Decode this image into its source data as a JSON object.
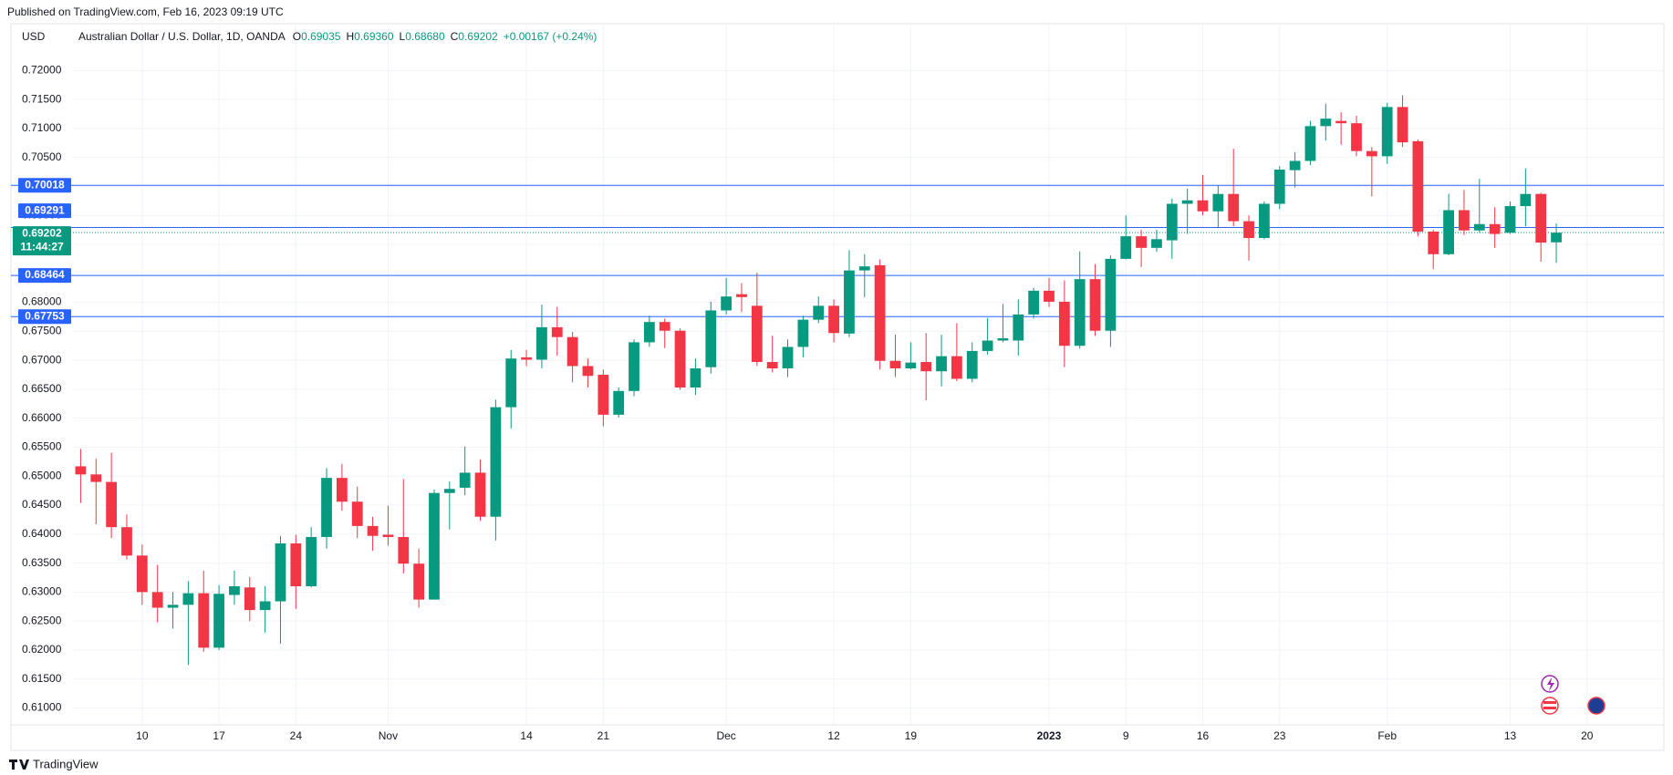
{
  "published": "Published on TradingView.com, Feb 16, 2023 09:19 UTC",
  "footer": "TradingView",
  "chart_data": {
    "type": "candlestick",
    "title": "Australian Dollar / U.S. Dollar, 1D, OANDA",
    "axis_label": "USD",
    "ohlc_legend": [
      "O",
      "0.69035",
      "H",
      "0.69360",
      "L",
      "0.68680",
      "C",
      "0.69202",
      "+0.00167 (+0.24%)"
    ],
    "up_color": "#089981",
    "down_color": "#f23645",
    "level_color": "#2962ff",
    "grid": true,
    "open": [
      0.6517,
      0.6503,
      0.649,
      0.6412,
      0.6363,
      0.63,
      0.6273,
      0.6278,
      0.6298,
      0.6204,
      0.6295,
      0.6308,
      0.6269,
      0.6284,
      0.6384,
      0.631,
      0.6395,
      0.6497,
      0.6456,
      0.6414,
      0.6399,
      0.6395,
      0.6349,
      0.6287,
      0.6471,
      0.648,
      0.6506,
      0.643,
      0.6619,
      0.6705,
      0.6701,
      0.6757,
      0.674,
      0.669,
      0.6675,
      0.6606,
      0.6647,
      0.6731,
      0.6766,
      0.6751,
      0.6653,
      0.6688,
      0.6786,
      0.6814,
      0.6794,
      0.6697,
      0.6686,
      0.6723,
      0.677,
      0.6794,
      0.6746,
      0.6855,
      0.6864,
      0.6699,
      0.6686,
      0.6697,
      0.6681,
      0.6707,
      0.6668,
      0.6716,
      0.6734,
      0.6734,
      0.6779,
      0.682,
      0.6801,
      0.6725,
      0.684,
      0.6751,
      0.6875,
      0.6914,
      0.6894,
      0.6907,
      0.697,
      0.6976,
      0.6957,
      0.6987,
      0.694,
      0.6911,
      0.697,
      0.7028,
      0.7044,
      0.7104,
      0.7113,
      0.7109,
      0.7061,
      0.7052,
      0.7137,
      0.7078,
      0.6922,
      0.6883,
      0.6959,
      0.6924,
      0.6935,
      0.692,
      0.6966,
      0.6987,
      0.69035
    ],
    "high": [
      0.6547,
      0.653,
      0.654,
      0.6434,
      0.6382,
      0.6347,
      0.63,
      0.6319,
      0.6337,
      0.6312,
      0.6337,
      0.6326,
      0.631,
      0.6397,
      0.6399,
      0.6412,
      0.6514,
      0.6521,
      0.6482,
      0.643,
      0.6449,
      0.6495,
      0.6375,
      0.6477,
      0.6491,
      0.6551,
      0.6529,
      0.6632,
      0.6718,
      0.6718,
      0.6796,
      0.6792,
      0.6749,
      0.6703,
      0.6684,
      0.6653,
      0.6736,
      0.6777,
      0.6772,
      0.6755,
      0.6703,
      0.6801,
      0.6842,
      0.6833,
      0.6851,
      0.6742,
      0.6736,
      0.6777,
      0.681,
      0.6805,
      0.689,
      0.6883,
      0.6874,
      0.6744,
      0.6731,
      0.6747,
      0.6744,
      0.6764,
      0.6731,
      0.6773,
      0.6797,
      0.6805,
      0.6825,
      0.6842,
      0.6838,
      0.6888,
      0.6866,
      0.6881,
      0.695,
      0.6925,
      0.6925,
      0.6979,
      0.6996,
      0.702,
      0.7002,
      0.7065,
      0.695,
      0.6974,
      0.7035,
      0.7059,
      0.7113,
      0.7143,
      0.7128,
      0.7122,
      0.7068,
      0.7144,
      0.7157,
      0.7081,
      0.6925,
      0.6987,
      0.6994,
      0.7013,
      0.6964,
      0.6974,
      0.7031,
      0.6989,
      0.6936
    ],
    "low": [
      0.6454,
      0.6417,
      0.6393,
      0.6356,
      0.6278,
      0.6248,
      0.6237,
      0.6174,
      0.6197,
      0.62,
      0.6278,
      0.625,
      0.623,
      0.6211,
      0.6271,
      0.6308,
      0.6375,
      0.644,
      0.6393,
      0.6371,
      0.638,
      0.6332,
      0.6273,
      0.6287,
      0.6408,
      0.6467,
      0.6423,
      0.6389,
      0.6582,
      0.669,
      0.6686,
      0.6708,
      0.6662,
      0.6653,
      0.6586,
      0.6601,
      0.6638,
      0.6723,
      0.6721,
      0.6649,
      0.664,
      0.6677,
      0.6779,
      0.6783,
      0.669,
      0.6679,
      0.6671,
      0.6705,
      0.6764,
      0.6731,
      0.674,
      0.6809,
      0.6684,
      0.6671,
      0.6684,
      0.6631,
      0.6655,
      0.6664,
      0.6662,
      0.671,
      0.6731,
      0.6708,
      0.6772,
      0.6792,
      0.6688,
      0.672,
      0.6742,
      0.6723,
      0.6874,
      0.6861,
      0.6887,
      0.6875,
      0.6918,
      0.695,
      0.6929,
      0.6931,
      0.6872,
      0.6909,
      0.6961,
      0.6998,
      0.7037,
      0.7079,
      0.7072,
      0.7052,
      0.6983,
      0.7039,
      0.7068,
      0.6914,
      0.6857,
      0.6881,
      0.6916,
      0.692,
      0.6894,
      0.6918,
      0.6931,
      0.687,
      0.6868
    ],
    "close": [
      0.6503,
      0.649,
      0.6412,
      0.6363,
      0.63,
      0.6273,
      0.6278,
      0.6298,
      0.6204,
      0.6297,
      0.631,
      0.6269,
      0.6284,
      0.6384,
      0.631,
      0.6395,
      0.6497,
      0.6456,
      0.6414,
      0.6397,
      0.6395,
      0.6349,
      0.6287,
      0.6471,
      0.6478,
      0.6506,
      0.643,
      0.6619,
      0.6703,
      0.6701,
      0.6757,
      0.674,
      0.669,
      0.6673,
      0.6606,
      0.6647,
      0.6731,
      0.6766,
      0.6751,
      0.6653,
      0.6686,
      0.6786,
      0.681,
      0.6809,
      0.6697,
      0.6686,
      0.6723,
      0.677,
      0.6794,
      0.6747,
      0.6855,
      0.6862,
      0.6699,
      0.6686,
      0.6696,
      0.6681,
      0.6707,
      0.6668,
      0.6716,
      0.6734,
      0.6738,
      0.6779,
      0.682,
      0.6801,
      0.6725,
      0.684,
      0.6751,
      0.6875,
      0.6914,
      0.6894,
      0.6909,
      0.697,
      0.6976,
      0.6957,
      0.6987,
      0.694,
      0.6911,
      0.697,
      0.7029,
      0.7044,
      0.7104,
      0.7117,
      0.7109,
      0.7061,
      0.7052,
      0.7137,
      0.7076,
      0.6922,
      0.6883,
      0.6959,
      0.6924,
      0.6935,
      0.6918,
      0.6966,
      0.6987,
      0.6903,
      0.69202
    ],
    "xlim": [
      -0.5,
      103
    ],
    "xticks": [
      {
        "value": 4,
        "label": "10"
      },
      {
        "value": 9,
        "label": "17"
      },
      {
        "value": 14,
        "label": "24"
      },
      {
        "value": 20,
        "label": "Nov"
      },
      {
        "value": 29,
        "label": "14"
      },
      {
        "value": 34,
        "label": "21"
      },
      {
        "value": 42,
        "label": "Dec"
      },
      {
        "value": 49,
        "label": "12"
      },
      {
        "value": 54,
        "label": "19"
      },
      {
        "value": 63,
        "label": "2023"
      },
      {
        "value": 68,
        "label": "9"
      },
      {
        "value": 73,
        "label": "16"
      },
      {
        "value": 78,
        "label": "23"
      },
      {
        "value": 85,
        "label": "Feb"
      },
      {
        "value": 93,
        "label": "13"
      },
      {
        "value": 98,
        "label": "20"
      }
    ],
    "ylim": [
      0.6074,
      0.7243
    ],
    "yticks": [
      {
        "value": 0.61,
        "label": "0.61000"
      },
      {
        "value": 0.615,
        "label": "0.61500"
      },
      {
        "value": 0.62,
        "label": "0.62000"
      },
      {
        "value": 0.625,
        "label": "0.62500"
      },
      {
        "value": 0.63,
        "label": "0.63000"
      },
      {
        "value": 0.635,
        "label": "0.63500"
      },
      {
        "value": 0.64,
        "label": "0.64000"
      },
      {
        "value": 0.645,
        "label": "0.64500"
      },
      {
        "value": 0.65,
        "label": "0.65000"
      },
      {
        "value": 0.655,
        "label": "0.65500"
      },
      {
        "value": 0.66,
        "label": "0.66000"
      },
      {
        "value": 0.665,
        "label": "0.66500"
      },
      {
        "value": 0.67,
        "label": "0.67000"
      },
      {
        "value": 0.675,
        "label": "0.67500"
      },
      {
        "value": 0.68,
        "label": "0.68000"
      },
      {
        "value": 0.685,
        "label": "0.68500"
      },
      {
        "value": 0.69,
        "label": "0.69000"
      },
      {
        "value": 0.695,
        "label": "0.69500"
      },
      {
        "value": 0.7,
        "label": "0.70000"
      },
      {
        "value": 0.705,
        "label": "0.70500"
      },
      {
        "value": 0.71,
        "label": "0.71000"
      },
      {
        "value": 0.715,
        "label": "0.71500"
      },
      {
        "value": 0.72,
        "label": "0.72000"
      }
    ],
    "levels": [
      {
        "value": 0.70018,
        "label": "0.70018"
      },
      {
        "value": 0.69291,
        "label": "0.69291"
      },
      {
        "value": 0.68464,
        "label": "0.68464"
      },
      {
        "value": 0.67753,
        "label": "0.67753"
      }
    ],
    "current_price": {
      "value": 0.69202,
      "label": "0.69202",
      "countdown": "11:44:27"
    }
  }
}
